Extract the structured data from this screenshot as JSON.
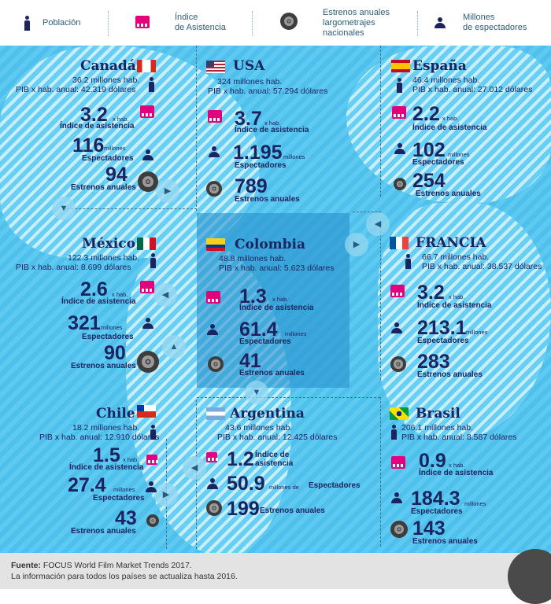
{
  "legend": {
    "poblacion": "Población",
    "asistencia": "Índice\nde Asistencia",
    "estrenos": "Estrenos anuales\nlargometrajes\nnacionales",
    "espectadores": "Millones\nde espectadores"
  },
  "colors": {
    "sea": "#5ec9f1",
    "navy": "#1b2460",
    "magenta": "#e3007d",
    "highlight": "#2891cd"
  },
  "countries": {
    "canada": {
      "name": "Canadá",
      "pop": "36.2 millones hab.",
      "pib": "PIB x hab. anual: 42.319 dólares",
      "asist": "3.2",
      "asist_unit": "x hab.",
      "asist_lbl": "Índice de asistencia",
      "espect": "116",
      "espect_unit": "millones",
      "espect_lbl": "Espectadores",
      "estrenos": "94",
      "estrenos_lbl": "Estrenos anuales"
    },
    "usa": {
      "name": "USA",
      "pop": "324 millones hab.",
      "pib": "PIB x hab. anual: 57.294 dólares",
      "asist": "3.7",
      "asist_unit": "x hab.",
      "asist_lbl": "Índice de asistencia",
      "espect": "1.195",
      "espect_unit": "millones",
      "espect_lbl": "Espectadores",
      "estrenos": "789",
      "estrenos_lbl": "Estrenos anuales"
    },
    "espana": {
      "name": "España",
      "pop": "46.4 millones hab.",
      "pib": "PIB x hab. anual: 27.012 dólares",
      "asist": "2.2",
      "asist_unit": "x hab.",
      "asist_lbl": "Índice de asistencia",
      "espect": "102",
      "espect_unit": "millones",
      "espect_lbl": "Espectadores",
      "estrenos": "254",
      "estrenos_lbl": "Estrenos anuales"
    },
    "mexico": {
      "name": "México",
      "pop": "122.3 millones hab.",
      "pib": "PIB x hab. anual: 8.699 dólares",
      "asist": "2.6",
      "asist_unit": "x hab.",
      "asist_lbl": "Índice de asistencia",
      "espect": "321",
      "espect_unit": "millones",
      "espect_lbl": "Espectadores",
      "estrenos": "90",
      "estrenos_lbl": "Estrenos anuales"
    },
    "colombia": {
      "name": "Colombia",
      "pop": "48.8 millones hab.",
      "pib": "PIB x hab. anual: 5.623 dólares",
      "asist": "1.3",
      "asist_unit": "x hab.",
      "asist_lbl": "Índice de asistencia",
      "espect": "61.4",
      "espect_unit": "millones",
      "espect_lbl": "Espectadores",
      "estrenos": "41",
      "estrenos_lbl": "Estrenos anuales"
    },
    "francia": {
      "name": "FRANCIA",
      "pop": "66.7 millones hab.",
      "pib": "PIB x hab. anual: 38.537 dólares",
      "asist": "3.2",
      "asist_unit": "x hab.",
      "asist_lbl": "Índice de asistencia",
      "espect": "213.1",
      "espect_unit": "millones",
      "espect_lbl": "Espectadores",
      "estrenos": "283",
      "estrenos_lbl": "Estrenos anuales"
    },
    "chile": {
      "name": "Chile",
      "pop": "18.2 millones hab.",
      "pib": "PIB x hab. anual: 12.910 dólares",
      "asist": "1.5",
      "asist_unit": "x hab.",
      "asist_lbl": "Índice de asistencia",
      "espect": "27.4",
      "espect_unit": "millones",
      "espect_lbl": "Espectadores",
      "estrenos": "43",
      "estrenos_lbl": "Estrenos anuales"
    },
    "argentina": {
      "name": "Argentina",
      "pop": "43.6 millones hab.",
      "pib": "PIB x hab. anual: 12.425 dólares",
      "asist": "1.2",
      "asist_lbl": "Índice de asistencia",
      "espect": "50.9",
      "espect_unit": "millones de",
      "espect_lbl": "Espectadores",
      "estrenos": "199",
      "estrenos_lbl": "Estrenos anuales"
    },
    "brasil": {
      "name": "Brasil",
      "pop": "206.1 millones hab.",
      "pib": "PIB x hab. anual: 8.587 dólares",
      "asist": "0.9",
      "asist_unit": "x hab.",
      "asist_lbl": "Índice de asistencia",
      "espect": "184.3",
      "espect_unit": "millones",
      "espect_lbl": "Espectadores",
      "estrenos": "143",
      "estrenos_lbl": "Estrenos anuales"
    }
  },
  "footer": {
    "fuente_label": "Fuente:",
    "fuente": " FOCUS World Film Market Trends 2017.",
    "nota": "La información para todos los países se actualiza hasta 2016."
  }
}
